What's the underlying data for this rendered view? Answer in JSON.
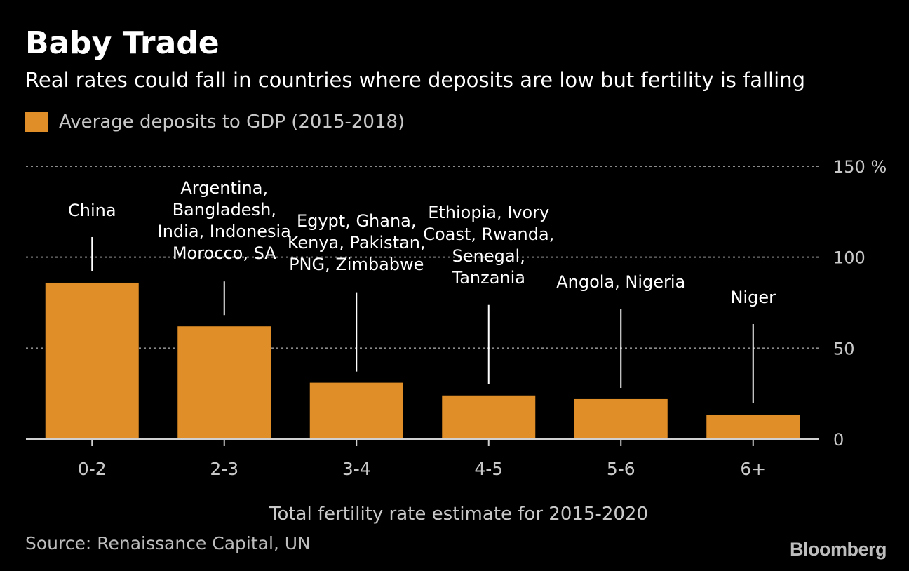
{
  "header": {
    "title": "Baby Trade",
    "subtitle": "Real rates could fall in countries where deposits are low but fertility is falling"
  },
  "legend": {
    "label": "Average deposits to GDP (2015-2018)"
  },
  "footer": {
    "source": "Source: Renaissance Capital, UN",
    "logo": "Bloomberg"
  },
  "colors": {
    "background": "#000000",
    "bar": "#E08E27",
    "gridline": "#8a8a8a",
    "axis_text": "#c8c8c8",
    "annotation_text": "#ffffff"
  },
  "chart_data": {
    "type": "bar",
    "title": "Baby Trade",
    "subtitle": "Real rates could fall in countries where deposits are low but fertility is falling",
    "xlabel": "Total fertility rate estimate for 2015-2020",
    "ylabel": "",
    "y_unit": "%",
    "ylim": [
      0,
      150
    ],
    "y_ticks": [
      0,
      50,
      100,
      150
    ],
    "y_tick_labels": [
      "0",
      "50",
      "100",
      "150 %"
    ],
    "y_axis_position": "right",
    "grid": "horizontal dotted",
    "legend_position": "top-left",
    "categories": [
      "0-2",
      "2-3",
      "3-4",
      "4-5",
      "5-6",
      "6+"
    ],
    "series": [
      {
        "name": "Average deposits to GDP (2015-2018)",
        "values": [
          86,
          62,
          31,
          24,
          22,
          13.5
        ]
      }
    ],
    "annotations": [
      {
        "category": "0-2",
        "lines": [
          "China"
        ]
      },
      {
        "category": "2-3",
        "lines": [
          "Argentina,",
          "Bangladesh,",
          "India, Indonesia",
          "Morocco, SA"
        ]
      },
      {
        "category": "3-4",
        "lines": [
          "Egypt, Ghana,",
          "Kenya, Pakistan,",
          "PNG, Zimbabwe"
        ]
      },
      {
        "category": "4-5",
        "lines": [
          "Ethiopia, Ivory",
          "Coast, Rwanda,",
          "Senegal,",
          "Tanzania"
        ]
      },
      {
        "category": "5-6",
        "lines": [
          "Angola, Nigeria"
        ]
      },
      {
        "category": "6+",
        "lines": [
          "Niger"
        ]
      }
    ]
  }
}
